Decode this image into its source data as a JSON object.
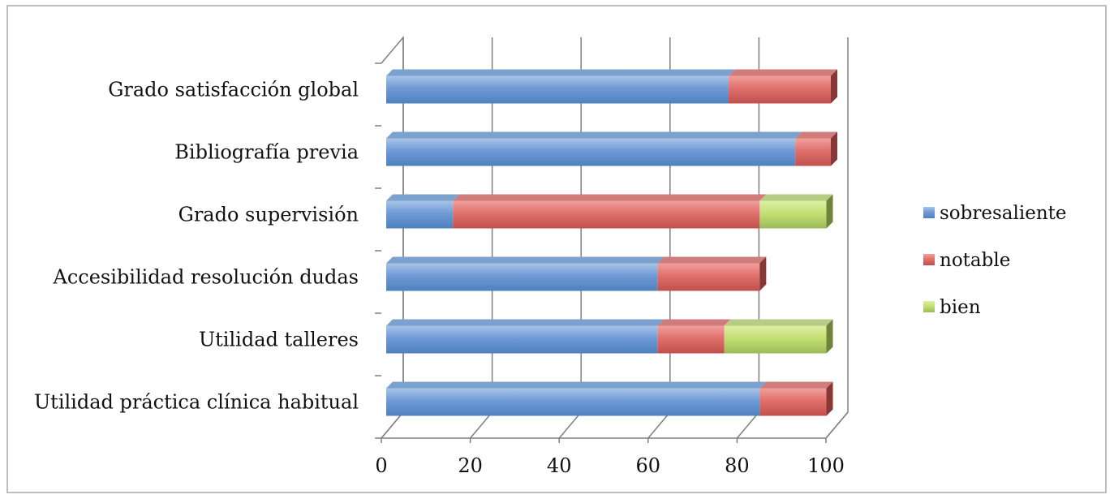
{
  "chart_data": {
    "type": "bar",
    "orientation": "horizontal",
    "stacked": true,
    "three_d": true,
    "title": "",
    "xlabel": "",
    "ylabel": "",
    "xlim": [
      0,
      100
    ],
    "x_ticks": [
      "0",
      "20",
      "40",
      "60",
      "80",
      "100"
    ],
    "categories": [
      "Grado satisfacción global",
      "Bibliografía previa",
      "Grado supervisión",
      "Accesibilidad resolución dudas",
      "Utilidad talleres",
      "Utilidad práctica clínica habitual"
    ],
    "series": [
      {
        "name": "sobresaliente",
        "color": "#4f81bd",
        "values": [
          77,
          92,
          15,
          61,
          61,
          84
        ]
      },
      {
        "name": "notable",
        "color": "#c0504d",
        "values": [
          23,
          8,
          69,
          23,
          15,
          15
        ]
      },
      {
        "name": "bien",
        "color": "#9bbb59",
        "values": [
          0,
          0,
          15,
          0,
          23,
          0
        ]
      }
    ],
    "grid": true,
    "legend_position": "right"
  }
}
